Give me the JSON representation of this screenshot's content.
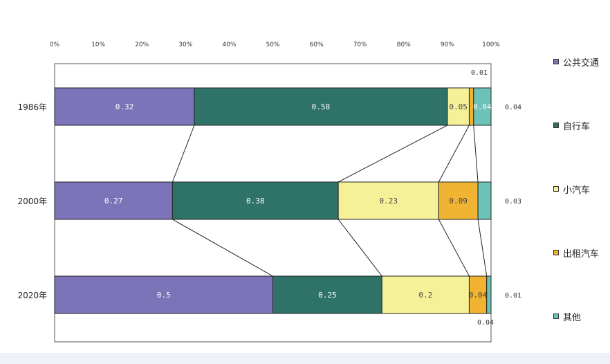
{
  "chart_data": {
    "type": "bar",
    "stacked": true,
    "orientation": "horizontal",
    "normalized": true,
    "categories": [
      "1986年",
      "2000年",
      "2020年"
    ],
    "x_ticks": [
      "0%",
      "10%",
      "20%",
      "30%",
      "40%",
      "50%",
      "60%",
      "70%",
      "80%",
      "90%",
      "100%"
    ],
    "xlim": [
      0,
      1
    ],
    "series": [
      {
        "name": "公共交通",
        "color": "#7b74b8",
        "values": [
          0.32,
          0.27,
          0.5
        ],
        "labels": [
          "0.32",
          "0.27",
          "0.5"
        ]
      },
      {
        "name": "自行车",
        "color": "#2f7268",
        "values": [
          0.58,
          0.38,
          0.25
        ],
        "labels": [
          "0.58",
          "0.38",
          "0.25"
        ]
      },
      {
        "name": "小汽车",
        "color": "#f6f199",
        "values": [
          0.05,
          0.23,
          0.2
        ],
        "labels": [
          "0.05",
          "0.23",
          "0.2"
        ]
      },
      {
        "name": "出租汽车",
        "color": "#f0b432",
        "values": [
          0.01,
          0.09,
          0.04
        ],
        "labels": [
          "0.01",
          "0.09",
          "0.04"
        ]
      },
      {
        "name": "其他",
        "color": "#6cc2b6",
        "values": [
          0.04,
          0.03,
          0.01
        ],
        "labels": [
          "0.04",
          "0.03",
          "0.01"
        ]
      }
    ],
    "legend_position": "right",
    "connector_lines": true,
    "grid": false
  }
}
